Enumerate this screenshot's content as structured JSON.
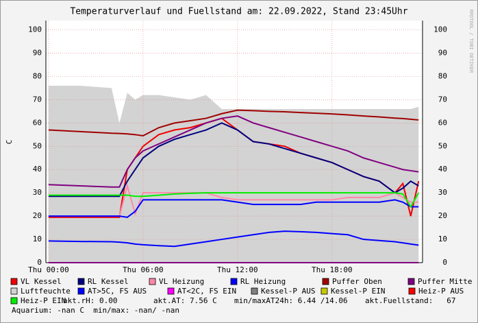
{
  "chart_data": {
    "type": "line",
    "title": "Temperaturverlauf und Fuellstand am: 22.09.2022, Stand 23:45Uhr",
    "y_label": "C",
    "watermark": "RRDTOOL / TOBI OETIKER",
    "xlim": [
      -0.17,
      23.75
    ],
    "xticks": [
      {
        "value": 0,
        "label": "Thu 00:00"
      },
      {
        "value": 6,
        "label": "Thu 06:00"
      },
      {
        "value": 12,
        "label": "Thu 12:00"
      },
      {
        "value": 18,
        "label": "Thu 18:00"
      }
    ],
    "ylim": [
      0,
      104
    ],
    "yticks": [
      0,
      10,
      20,
      30,
      40,
      50,
      60,
      70,
      80,
      90,
      100
    ],
    "grid": true,
    "x": [
      0,
      2,
      4,
      4.5,
      5,
      5.5,
      6,
      7,
      8,
      9,
      10,
      11,
      12,
      13,
      14,
      15,
      16,
      17,
      18,
      19,
      20,
      21,
      22,
      22.5,
      23,
      23.5
    ],
    "series": [
      {
        "name": "VL Kessel",
        "color": "#ee0000",
        "values": [
          19.5,
          19.5,
          19.5,
          19.5,
          40,
          45,
          50,
          55,
          57,
          58,
          60,
          62,
          57,
          52,
          51,
          50,
          47,
          45,
          43,
          40,
          37,
          35,
          30,
          34,
          20,
          35
        ]
      },
      {
        "name": "RL Kessel",
        "color": "#000080",
        "values": [
          28.5,
          28.5,
          28.5,
          28.5,
          35,
          40,
          45,
          50,
          53,
          55,
          57,
          60,
          57,
          52,
          51,
          49,
          47,
          45,
          43,
          40,
          37,
          35,
          30,
          32,
          35,
          33
        ]
      },
      {
        "name": "VL Heizung",
        "color": "#ff88aa",
        "values": [
          20,
          20,
          20,
          20,
          33,
          21,
          30,
          30,
          30,
          30,
          30,
          28,
          27,
          27,
          27,
          27,
          27,
          27,
          27,
          28,
          28,
          28,
          30,
          28,
          26,
          26
        ]
      },
      {
        "name": "RL Heizung",
        "color": "#0000ff",
        "values": [
          20,
          20,
          20,
          20,
          19.5,
          22,
          27,
          27,
          27,
          27,
          27,
          27,
          26,
          25,
          25,
          25,
          25,
          26,
          26,
          26,
          26,
          26,
          27,
          26,
          24,
          24
        ]
      },
      {
        "name": "Puffer Oben",
        "color": "#a00000",
        "values": [
          57,
          56.3,
          55.6,
          55.5,
          55.3,
          55,
          54.5,
          58,
          60,
          61,
          62,
          64,
          65.5,
          65.3,
          65,
          64.8,
          64.5,
          64.2,
          63.9,
          63.5,
          63,
          62.6,
          62.1,
          61.9,
          61.6,
          61.3
        ]
      },
      {
        "name": "Puffer Mitte",
        "color": "#800080",
        "values": [
          33.5,
          33,
          32.5,
          32.5,
          40,
          45,
          48,
          51,
          54,
          57,
          60,
          62,
          63,
          60,
          58,
          56,
          54,
          52,
          50,
          48,
          45,
          43,
          41,
          40,
          39.5,
          39
        ]
      },
      {
        "name": "Luftfeuchte",
        "color": "#d3d3d3",
        "area": true,
        "values": [
          76,
          76,
          75,
          60,
          73,
          70,
          72,
          72,
          71,
          70,
          72,
          66,
          66,
          66,
          66,
          66,
          66,
          66,
          66,
          66,
          66,
          66,
          66,
          66,
          66,
          67
        ]
      },
      {
        "name": "AT>5C, FS AUS",
        "color": "#0000ff",
        "values": [
          9.3,
          9.1,
          9,
          8.8,
          8.5,
          8,
          7.7,
          7.3,
          7,
          8,
          9,
          10,
          11,
          12,
          13,
          13.5,
          13.3,
          13,
          12.5,
          12,
          10,
          9.5,
          9,
          8.5,
          8,
          7.5
        ]
      },
      {
        "name": "AT<2C, FS EIN",
        "color": "#ff00ff",
        "values": [
          0,
          0,
          0,
          0,
          0,
          0,
          0,
          0,
          0,
          0,
          0,
          0,
          0,
          0,
          0,
          0,
          0,
          0,
          0,
          0,
          0,
          0,
          0,
          0,
          0,
          0
        ]
      },
      {
        "name": "Kessel-P AUS",
        "color": "#808080"
      },
      {
        "name": "Kessel-P EIN",
        "color": "#c8c800"
      },
      {
        "name": "Heiz-P AUS",
        "color": "#ff0000"
      },
      {
        "name": "Heiz-P EIN",
        "color": "#00ee00",
        "values": [
          29,
          29,
          29,
          29,
          29,
          28.5,
          28.5,
          29,
          29.5,
          29.8,
          30,
          30,
          30,
          30,
          30,
          30,
          30,
          30,
          30,
          30,
          30,
          30,
          30,
          29.5,
          24,
          30
        ]
      }
    ],
    "stats": [
      "akt.rH: 0.00",
      "akt.AT: 7.56 C",
      "min/maxAT24h: 6.44 /14.06",
      "akt.Fuellstand:   67"
    ],
    "footer": "Aquarium: -nan C  min/max: -nan/ -nan"
  }
}
